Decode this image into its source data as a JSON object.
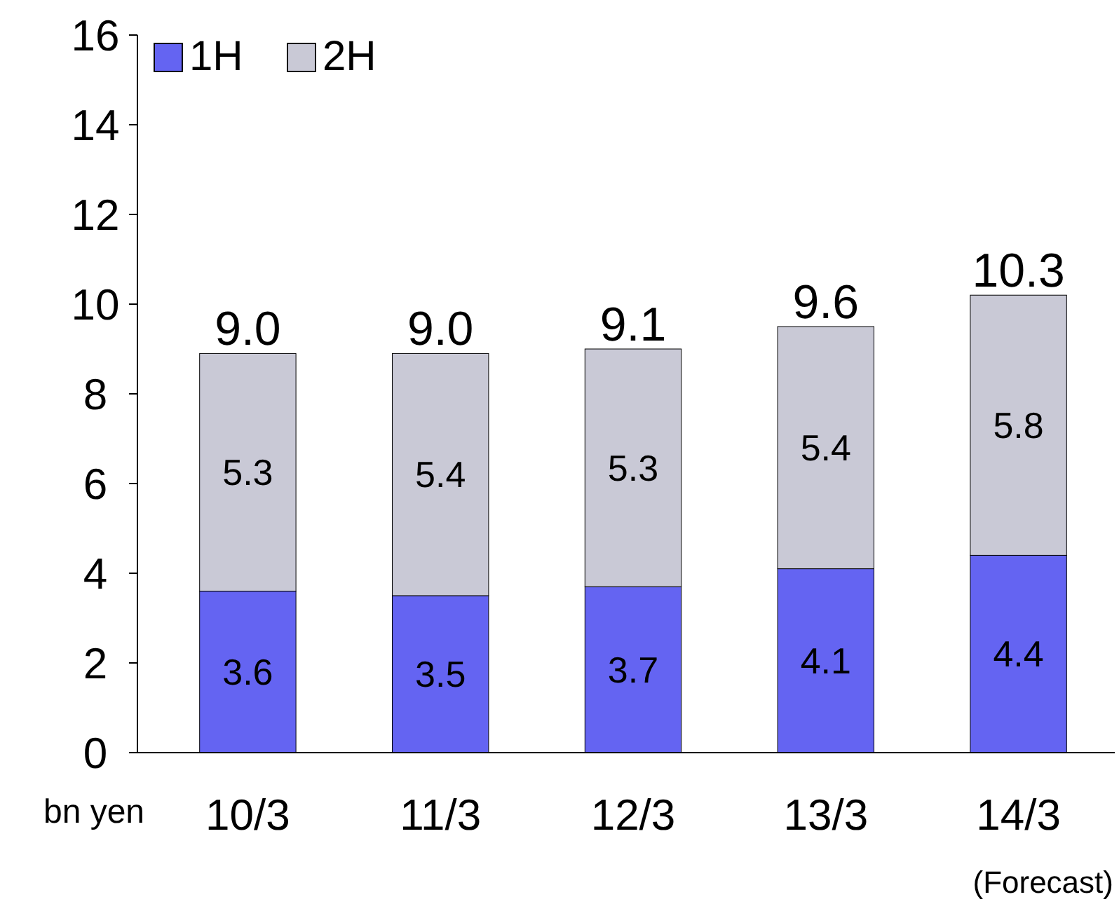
{
  "chart_data": {
    "type": "bar",
    "stacked": true,
    "ylabel": "bn yen",
    "categories": [
      "10/3",
      "11/3",
      "12/3",
      "13/3",
      "14/3"
    ],
    "series": [
      {
        "name": "1H",
        "color": "#6464f2",
        "values": [
          3.6,
          3.5,
          3.7,
          4.1,
          4.4
        ]
      },
      {
        "name": "2H",
        "color": "#c9c9d6",
        "values": [
          5.3,
          5.4,
          5.3,
          5.4,
          5.8
        ]
      }
    ],
    "totals": [
      "9.0",
      "9.0",
      "9.1",
      "9.6",
      "10.3"
    ],
    "data_labels": true,
    "ylim": [
      0,
      16
    ],
    "yticks": [
      0,
      2,
      4,
      6,
      8,
      10,
      12,
      14,
      16
    ],
    "grid": false,
    "legend": "top left",
    "annotations": [
      "(Forecast)"
    ]
  }
}
